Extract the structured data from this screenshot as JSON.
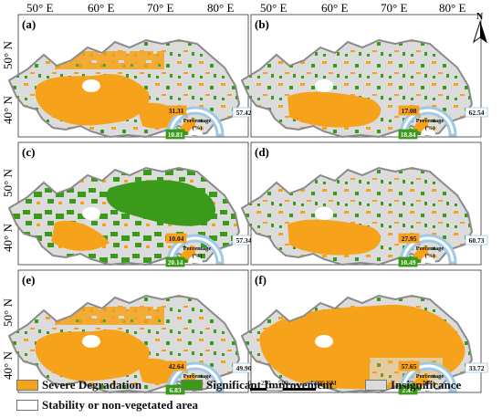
{
  "axes": {
    "top_lon": [
      "50° E",
      "60° E",
      "70° E",
      "80° E"
    ],
    "left_lat": [
      "50° N",
      "40° N"
    ]
  },
  "north_label": "N",
  "colors": {
    "severe": "#f7a21b",
    "improve": "#3a9a1a",
    "insig": "#dcdcdc",
    "stable": "#ffffff",
    "gauge_ring": "#9fc9e6",
    "border": "#8a8a8a"
  },
  "panels": [
    {
      "label": "(a)",
      "severe": "31.31",
      "improve": "10.81",
      "insig": "57.42",
      "gauge_title": "Percentage",
      "gauge_unit": "(%)",
      "mode": "sev"
    },
    {
      "label": "(b)",
      "severe": "17.08",
      "improve": "18.84",
      "insig": "62.54",
      "gauge_title": "Percentage",
      "gauge_unit": "(%)",
      "mode": "ins"
    },
    {
      "label": "(c)",
      "severe": "10.04",
      "improve": "20.14",
      "insig": "57.34",
      "gauge_title": "Percentage",
      "gauge_unit": "(%)",
      "mode": "imp"
    },
    {
      "label": "(d)",
      "severe": "27.95",
      "improve": "10.49",
      "insig": "60.73",
      "gauge_title": "Percentage",
      "gauge_unit": "(%)",
      "mode": "ins"
    },
    {
      "label": "(e)",
      "severe": "42.64",
      "improve": "6.83",
      "insig": "49.90",
      "gauge_title": "Percentage",
      "gauge_unit": "(%)",
      "mode": "sev"
    },
    {
      "label": "(f)",
      "severe": "57.65",
      "improve": "2.47",
      "insig": "33.72",
      "gauge_title": "Percentage",
      "gauge_unit": "(%)",
      "mode": "sev2"
    }
  ],
  "legend": {
    "severe": "Severe Degradation",
    "improve": "Significant Improvement",
    "insig": "Insignificance",
    "stable": "Stability or non-vegetated area"
  },
  "scale": {
    "ticks": [
      "0",
      "250",
      "500"
    ],
    "end": "1,000 KM"
  }
}
